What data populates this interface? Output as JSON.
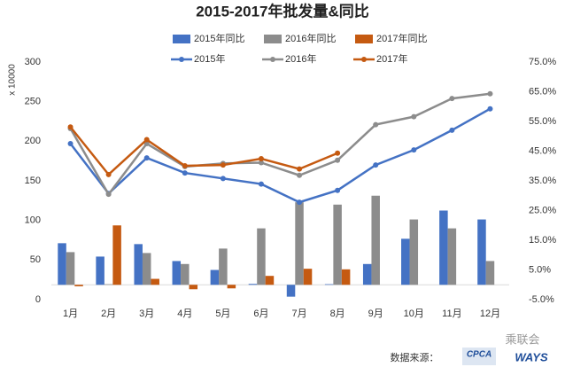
{
  "chart_data": {
    "type": "combo",
    "title": "2015-2017年批发量&同比",
    "ylabel": "x 10000",
    "categories": [
      "1月",
      "2月",
      "3月",
      "4月",
      "5月",
      "6月",
      "7月",
      "8月",
      "9月",
      "10月",
      "11月",
      "12月"
    ],
    "ylim": [
      0,
      300
    ],
    "yticks": [
      0,
      50,
      100,
      150,
      200,
      250,
      300
    ],
    "y2lim": [
      -5,
      75
    ],
    "y2ticks": [
      {
        "value": -5,
        "label": "-5.0%"
      },
      {
        "value": 5,
        "label": "5.0%"
      },
      {
        "value": 15,
        "label": "15.0%"
      },
      {
        "value": 25,
        "label": "25.0%"
      },
      {
        "value": 35,
        "label": "35.0%"
      },
      {
        "value": 45,
        "label": "45.0%"
      },
      {
        "value": 55,
        "label": "55.0%"
      },
      {
        "value": 65,
        "label": "65.0%"
      },
      {
        "value": 75,
        "label": "75.0%"
      }
    ],
    "series": [
      {
        "name": "2015年同比",
        "type": "bar",
        "axis": "y2",
        "color": "#4472c4",
        "values": [
          14,
          9.5,
          13.7,
          8,
          5,
          0.3,
          -4,
          0.2,
          7,
          15.5,
          25,
          22
        ]
      },
      {
        "name": "2016年同比",
        "type": "bar",
        "axis": "y2",
        "color": "#8c8c8c",
        "values": [
          11,
          0.2,
          10.7,
          7,
          12.2,
          19,
          27.8,
          27,
          30,
          22,
          19,
          8
        ]
      },
      {
        "name": "2017年同比",
        "type": "bar",
        "axis": "y2",
        "color": "#c55a11",
        "values": [
          -0.5,
          20,
          2,
          -1.5,
          -1.2,
          3,
          5.4,
          5.2,
          null,
          null,
          null,
          null
        ]
      },
      {
        "name": "2015年",
        "type": "line",
        "color": "#4472c4",
        "values": [
          197,
          134,
          179,
          160,
          153,
          146,
          123,
          138,
          170,
          189,
          214,
          241
        ]
      },
      {
        "name": "2016年",
        "type": "line",
        "color": "#8c8c8c",
        "values": [
          216,
          133,
          197,
          168,
          172,
          173,
          157,
          176,
          221,
          231,
          254,
          260
        ]
      },
      {
        "name": "2017年",
        "type": "line",
        "color": "#c55a11",
        "values": [
          218,
          158,
          202,
          169,
          170,
          178,
          165,
          185,
          null,
          null,
          null,
          null
        ]
      }
    ],
    "source": "数据来源：",
    "watermark": "乘联会",
    "logo1": "CPCA",
    "logo2": "WAYS"
  }
}
